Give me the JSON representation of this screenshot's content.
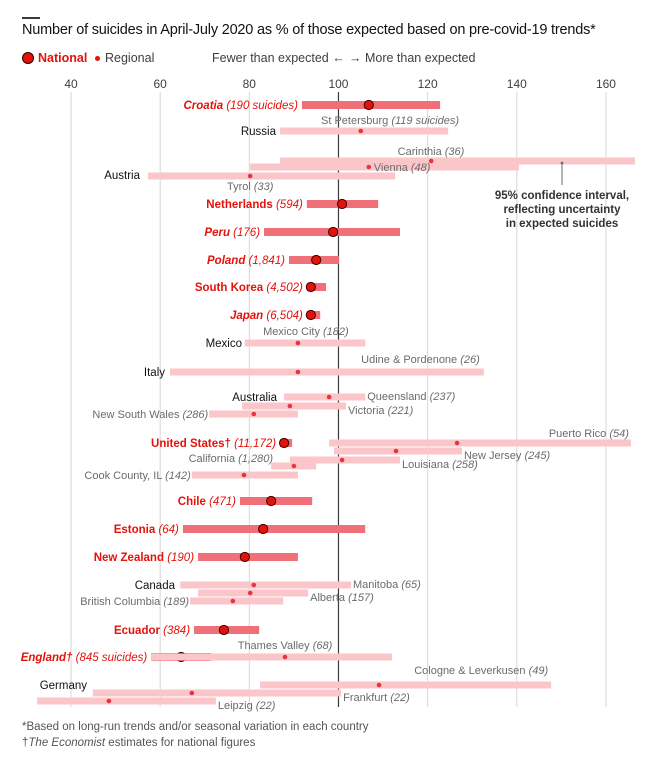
{
  "title": "Number of suicides in April-July 2020 as % of those expected based on pre-covid-19 trends*",
  "legend": {
    "national_label": "National",
    "regional_label": "Regional"
  },
  "direction": {
    "fewer": "Fewer than expected ←",
    "more": "→ More than expected"
  },
  "annotation": {
    "lines": [
      "95% confidence interval,",
      "reflecting uncertainty",
      "in expected suicides"
    ]
  },
  "footnotes": {
    "line1": "*Based on long-run trends and/or seasonal variation in each country",
    "line2_dagger": "†",
    "line2_italic": "The Economist",
    "line2_rest": " estimates for national figures"
  },
  "colors": {
    "national": "#e3120b",
    "national_bar": "#ef7079",
    "regional_bar": "#fac6c9",
    "regional_dot": "#e8343f",
    "country_label": "#121212",
    "region_label": "#6b6b6b",
    "grid": "#d6d6d6",
    "ref_line": "#3a3a3a"
  },
  "chart_data": {
    "type": "dot-range",
    "title": "Number of suicides in April-July 2020 as % of those expected based on pre-covid-19 trends*",
    "xlabel": "",
    "ylabel": "",
    "xlim": [
      32,
      168
    ],
    "xticks": [
      40,
      60,
      80,
      100,
      120,
      140,
      160
    ],
    "reference_line": 100,
    "grid": true,
    "legend_position": "top-left",
    "rows": [
      {
        "kind": "national",
        "name": "Croatia",
        "count": "190 suicides",
        "italic": true,
        "value": 106.8,
        "low": 91.8,
        "high": 122.8
      },
      {
        "kind": "group",
        "name": "Russia"
      },
      {
        "kind": "regional",
        "group": "Russia",
        "name": "St Petersburg",
        "count": "119 suicides",
        "value": 105.0,
        "low": 86.9,
        "high": 124.6,
        "label_pos": "above"
      },
      {
        "kind": "group",
        "name": "Austria"
      },
      {
        "kind": "regional",
        "group": "Austria",
        "name": "Carinthia",
        "count": "36",
        "value": 120.8,
        "low": 86.9,
        "high": 166.5,
        "label_pos": "above"
      },
      {
        "kind": "regional",
        "group": "Austria",
        "name": "Vienna",
        "count": "48",
        "value": 106.8,
        "low": 80.2,
        "high": 140.5,
        "label_pos": "inline"
      },
      {
        "kind": "regional",
        "group": "Austria",
        "name": "Tyrol",
        "count": "33",
        "value": 80.2,
        "low": 57.3,
        "high": 112.7,
        "label_pos": "below"
      },
      {
        "kind": "national",
        "name": "Netherlands",
        "count": "594",
        "italic": false,
        "value": 100.8,
        "low": 92.9,
        "high": 108.9
      },
      {
        "kind": "national",
        "name": "Peru",
        "count": "176",
        "italic": true,
        "value": 98.8,
        "low": 83.3,
        "high": 113.8
      },
      {
        "kind": "national",
        "name": "Poland",
        "count": "1,841",
        "italic": true,
        "value": 95.0,
        "low": 88.9,
        "high": 100.1
      },
      {
        "kind": "national",
        "name": "South Korea",
        "count": "4,502",
        "italic": false,
        "value": 93.8,
        "low": 92.9,
        "high": 97.2
      },
      {
        "kind": "national",
        "name": "Japan",
        "count": "6,504",
        "italic": true,
        "value": 93.8,
        "low": 92.9,
        "high": 95.9
      },
      {
        "kind": "group",
        "name": "Mexico"
      },
      {
        "kind": "regional",
        "group": "Mexico",
        "name": "Mexico City",
        "count": "182",
        "value": 90.9,
        "low": 79.0,
        "high": 106.0,
        "label_pos": "above"
      },
      {
        "kind": "group",
        "name": "Italy"
      },
      {
        "kind": "regional",
        "group": "Italy",
        "name": "Udine & Pordenone",
        "count": "26",
        "value": 90.9,
        "low": 62.2,
        "high": 132.6,
        "label_pos": "above-right"
      },
      {
        "kind": "group",
        "name": "Australia"
      },
      {
        "kind": "regional",
        "group": "Australia",
        "name": "Queensland",
        "count": "237",
        "value": 97.9,
        "low": 87.8,
        "high": 106.0,
        "label_pos": "right"
      },
      {
        "kind": "regional",
        "group": "Australia",
        "name": "Victoria",
        "count": "221",
        "value": 89.1,
        "low": 78.4,
        "high": 101.7,
        "label_pos": "right"
      },
      {
        "kind": "regional",
        "group": "Australia",
        "name": "New South Wales",
        "count": "286",
        "value": 81.0,
        "low": 71.0,
        "high": 90.9,
        "label_pos": "left"
      },
      {
        "kind": "national",
        "name": "United States†",
        "count": "11,172",
        "italic": false,
        "value": 87.8,
        "low": 86.9,
        "high": 89.6
      },
      {
        "kind": "regional",
        "group": "United States",
        "name": "Puerto Rico",
        "count": "54",
        "value": 126.6,
        "low": 97.9,
        "high": 165.6,
        "label_pos": "above-right"
      },
      {
        "kind": "regional",
        "group": "United States",
        "name": "New Jersey",
        "count": "245",
        "value": 112.9,
        "low": 99.0,
        "high": 127.7,
        "label_pos": "right"
      },
      {
        "kind": "regional",
        "group": "United States",
        "name": "Louisiana",
        "count": "258",
        "value": 100.8,
        "low": 89.1,
        "high": 113.8,
        "label_pos": "right"
      },
      {
        "kind": "regional",
        "group": "United States",
        "name": "California",
        "count": "1,280",
        "value": 90.0,
        "low": 84.9,
        "high": 95.0,
        "label_pos": "left"
      },
      {
        "kind": "regional",
        "group": "United States",
        "name": "Cook County, IL",
        "count": "142",
        "value": 78.8,
        "low": 67.1,
        "high": 90.9,
        "label_pos": "left"
      },
      {
        "kind": "national",
        "name": "Chile",
        "count": "471",
        "italic": false,
        "value": 84.9,
        "low": 77.9,
        "high": 94.1
      },
      {
        "kind": "national",
        "name": "Estonia",
        "count": "64",
        "italic": false,
        "value": 83.1,
        "low": 65.1,
        "high": 106.0
      },
      {
        "kind": "national",
        "name": "New Zealand",
        "count": "190",
        "italic": false,
        "value": 79.0,
        "low": 68.5,
        "high": 90.9
      },
      {
        "kind": "group",
        "name": "Canada"
      },
      {
        "kind": "regional",
        "group": "Canada",
        "name": "Manitoba",
        "count": "65",
        "value": 81.0,
        "low": 64.5,
        "high": 102.8,
        "label_pos": "right"
      },
      {
        "kind": "regional",
        "group": "Canada",
        "name": "Alberta",
        "count": "157",
        "value": 80.2,
        "low": 68.5,
        "high": 93.2,
        "label_pos": "right"
      },
      {
        "kind": "regional",
        "group": "Canada",
        "name": "British Columbia",
        "count": "189",
        "value": 76.3,
        "low": 66.7,
        "high": 87.6,
        "label_pos": "left"
      },
      {
        "kind": "national",
        "name": "Ecuador",
        "count": "384",
        "italic": false,
        "value": 74.3,
        "low": 67.6,
        "high": 82.2
      },
      {
        "kind": "national",
        "name": "England†",
        "count": "845 suicides",
        "italic": true,
        "value": 64.7,
        "low": 58.0,
        "high": 71.4
      },
      {
        "kind": "regional",
        "group": "England",
        "name": "Thames Valley",
        "count": "68",
        "value": 88.0,
        "low": 58.0,
        "high": 112.0,
        "label_pos": "above"
      },
      {
        "kind": "group",
        "name": "Germany"
      },
      {
        "kind": "regional",
        "group": "Germany",
        "name": "Cologne & Leverkusen",
        "count": "49",
        "value": 109.1,
        "low": 82.4,
        "high": 147.7,
        "label_pos": "above-right"
      },
      {
        "kind": "regional",
        "group": "Germany",
        "name": "Frankfurt",
        "count": "22",
        "value": 67.1,
        "low": 44.9,
        "high": 100.6,
        "label_pos": "right"
      },
      {
        "kind": "regional",
        "group": "Germany",
        "name": "Leipzig",
        "count": "22",
        "value": 48.5,
        "low": 32.4,
        "high": 72.5,
        "label_pos": "right"
      }
    ]
  }
}
